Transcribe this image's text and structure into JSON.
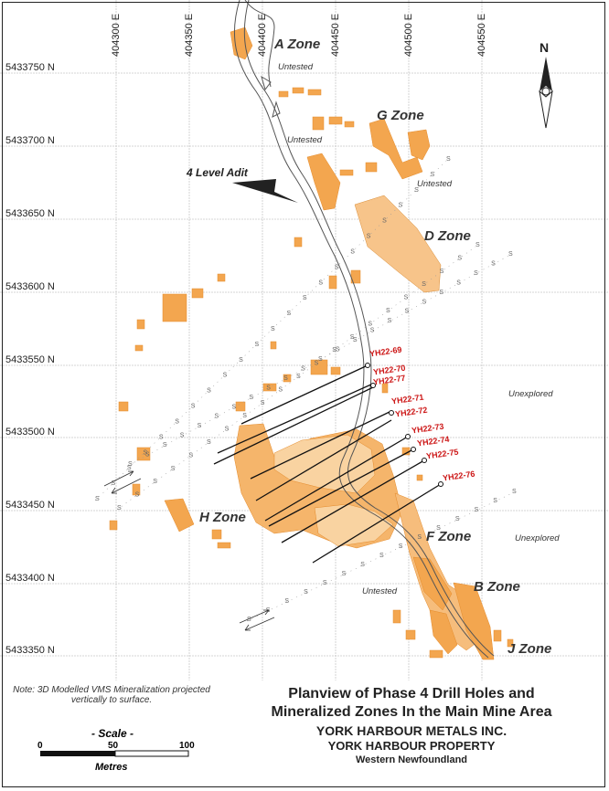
{
  "map": {
    "eastings": [
      "404300 E",
      "404350 E",
      "404400 E",
      "404450 E",
      "404500 E",
      "404550 E"
    ],
    "northings": [
      "5433750 N",
      "5433700 N",
      "5433650 N",
      "5433600 N",
      "5433550 N",
      "5433500 N",
      "5433450 N",
      "5433400 N",
      "5433350 N"
    ],
    "zones": [
      "A Zone",
      "G Zone",
      "D Zone",
      "H Zone",
      "F Zone",
      "B Zone",
      "J Zone"
    ],
    "status_labels": [
      "Untested",
      "Untested",
      "Untested",
      "Unexplored",
      "Unexplored",
      "Untested"
    ],
    "adit_label": "4 Level Adit",
    "north_label": "N",
    "drill_holes": [
      "YH22-69",
      "YH22-70",
      "YH22-77",
      "YH22-71",
      "YH22-72",
      "YH22-73",
      "YH22-74",
      "YH22-75",
      "YH22-76"
    ],
    "note": "Note: 3D Modelled VMS Mineralization projected vertically to surface.",
    "title": {
      "line1": "Planview of Phase 4 Drill Holes and",
      "line2": "Mineralized Zones In the Main Mine Area",
      "company": "YORK HARBOUR METALS INC.",
      "property": "YORK HARBOUR PROPERTY",
      "region": "Western Newfoundland"
    },
    "scale": {
      "title": "- Scale -",
      "ticks": [
        "0",
        "50",
        "100"
      ],
      "unit": "Metres"
    },
    "colors": {
      "mineralization": "#f3a64f",
      "drill_label": "#cc1414",
      "grid": "#c8c8c8",
      "road": "#555555"
    }
  }
}
